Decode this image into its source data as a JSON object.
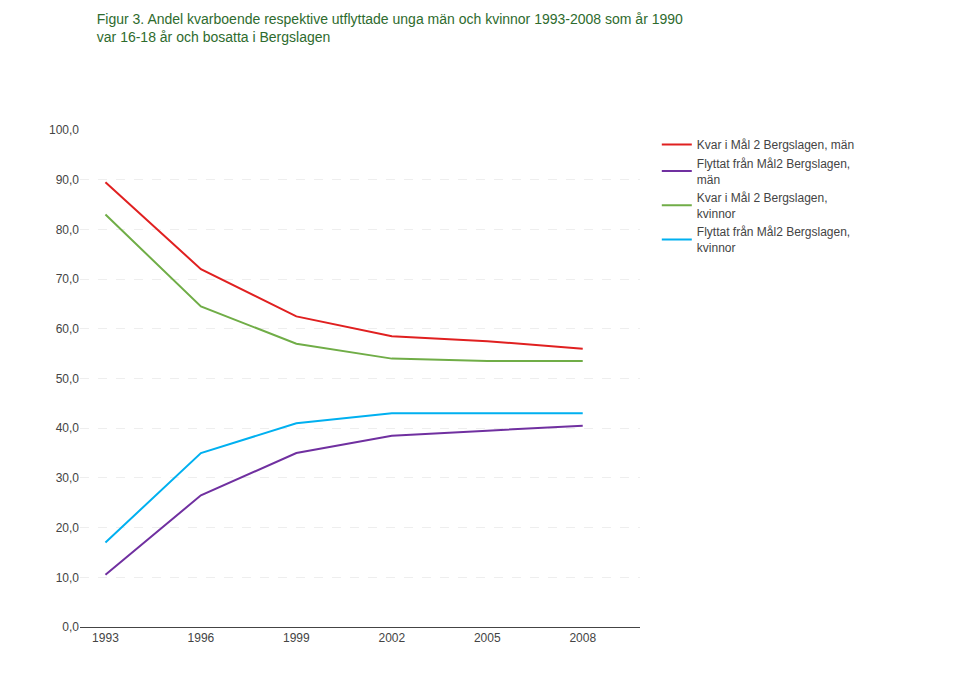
{
  "chart_data": {
    "type": "line",
    "title": "Figur 3. Andel kvarboende respektive utflyttade unga män och kvinnor 1993-2008 som år 1990\nvar 16-18 år och bosatta i Bergslagen",
    "x": [
      1993,
      1996,
      1999,
      2002,
      2005,
      2008
    ],
    "series": [
      {
        "name": "Kvar i Mål 2 Bergslagen, män",
        "color": "#e02020",
        "values": [
          89.5,
          72.0,
          62.5,
          58.5,
          57.5,
          56.0
        ]
      },
      {
        "name": "Flyttat från Mål2 Bergslagen,\nmän",
        "color": "#7030a0",
        "values": [
          10.5,
          26.5,
          35.0,
          38.5,
          39.5,
          40.5
        ]
      },
      {
        "name": "Kvar i Mål 2 Bergslagen,\nkvinnor",
        "color": "#70ad47",
        "values": [
          83.0,
          64.5,
          57.0,
          54.0,
          53.5,
          53.5
        ]
      },
      {
        "name": "Flyttat från Mål2 Bergslagen,\nkvinnor",
        "color": "#00b0f0",
        "values": [
          17.0,
          35.0,
          41.0,
          43.0,
          43.0,
          43.0
        ]
      }
    ],
    "xlim": [
      1992.2,
      2009.8
    ],
    "xticks": [
      1993,
      1996,
      1999,
      2002,
      2005,
      2008
    ],
    "ylim": [
      0.0,
      100.0
    ],
    "yticks": [
      {
        "value": 0.0,
        "label": "0,0"
      },
      {
        "value": 10.0,
        "label": "10,0"
      },
      {
        "value": 20.0,
        "label": "20,0"
      },
      {
        "value": 30.0,
        "label": "30,0"
      },
      {
        "value": 40.0,
        "label": "40,0"
      },
      {
        "value": 50.0,
        "label": "50,0"
      },
      {
        "value": 60.0,
        "label": "60,0"
      },
      {
        "value": 70.0,
        "label": "70,0"
      },
      {
        "value": 80.0,
        "label": "80,0"
      },
      {
        "value": 90.0,
        "label": "90,0"
      },
      {
        "value": 100.0,
        "label": "100,0"
      }
    ],
    "grid": true,
    "legend": "right"
  }
}
